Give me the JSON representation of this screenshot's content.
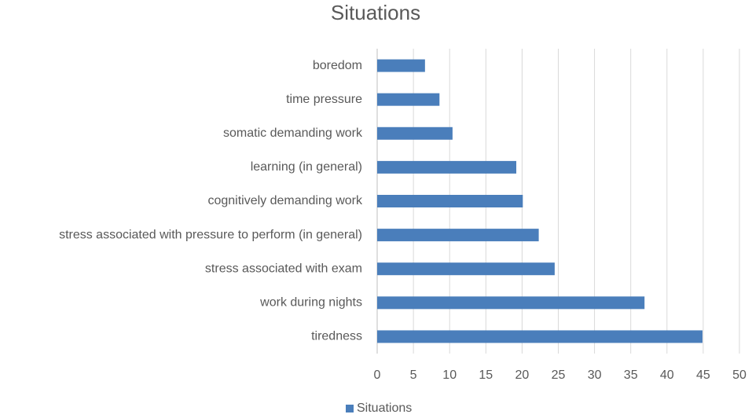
{
  "chart_data": {
    "type": "bar",
    "orientation": "horizontal",
    "title": "Situations",
    "categories": [
      "boredom",
      "time pressure",
      "somatic demanding work",
      "learning (in general)",
      "cognitively demanding work",
      "stress associated with pressure to perform (in general)",
      "stress associated with exam",
      "work during nights",
      "tiredness"
    ],
    "series": [
      {
        "name": "Situations",
        "color": "#4a7ebb",
        "values": [
          6.6,
          8.6,
          10.4,
          19.2,
          20.1,
          22.3,
          24.5,
          36.9,
          44.9
        ]
      }
    ],
    "xlim": [
      0,
      50
    ],
    "xticks": [
      0,
      5,
      10,
      15,
      20,
      25,
      30,
      35,
      40,
      45,
      50
    ],
    "grid": true,
    "legend": "bottom"
  }
}
